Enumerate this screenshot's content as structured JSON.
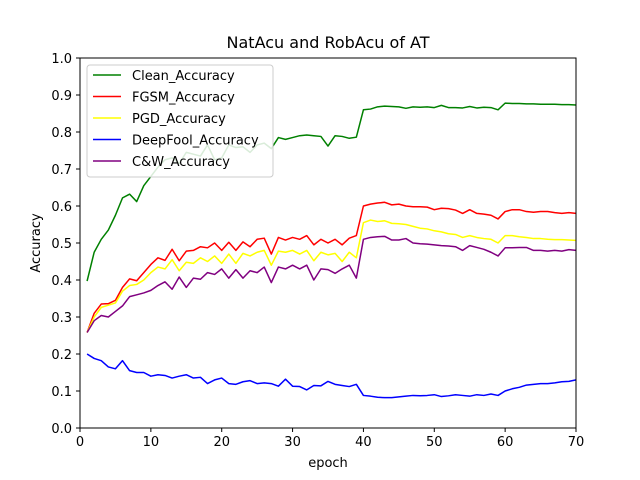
{
  "chart_data": {
    "type": "line",
    "title": "NatAcu and RobAcu of AT",
    "xlabel": "epoch",
    "ylabel": "Accuracy",
    "xlim": [
      0,
      70
    ],
    "ylim": [
      0.0,
      1.0
    ],
    "xticks": [
      "0",
      "10",
      "20",
      "30",
      "40",
      "50",
      "60",
      "70"
    ],
    "yticks": [
      "0.0",
      "0.1",
      "0.2",
      "0.3",
      "0.4",
      "0.5",
      "0.6",
      "0.7",
      "0.8",
      "0.9",
      "1.0"
    ],
    "grid": false,
    "legend_position": "upper-left",
    "x": [
      1,
      2,
      3,
      4,
      5,
      6,
      7,
      8,
      9,
      10,
      11,
      12,
      13,
      14,
      15,
      16,
      17,
      18,
      19,
      20,
      21,
      22,
      23,
      24,
      25,
      26,
      27,
      28,
      29,
      30,
      31,
      32,
      33,
      34,
      35,
      36,
      37,
      38,
      39,
      40,
      41,
      42,
      43,
      44,
      45,
      46,
      47,
      48,
      49,
      50,
      51,
      52,
      53,
      54,
      55,
      56,
      57,
      58,
      59,
      60,
      61,
      62,
      63,
      64,
      65,
      66,
      67,
      68,
      69,
      70
    ],
    "series": [
      {
        "name": "Clean_Accuracy",
        "color": "#008000",
        "values": [
          0.397,
          0.475,
          0.51,
          0.535,
          0.575,
          0.622,
          0.632,
          0.612,
          0.655,
          0.68,
          0.705,
          0.725,
          0.73,
          0.715,
          0.745,
          0.74,
          0.735,
          0.765,
          0.725,
          0.73,
          0.765,
          0.758,
          0.76,
          0.745,
          0.765,
          0.77,
          0.755,
          0.785,
          0.78,
          0.785,
          0.79,
          0.792,
          0.79,
          0.788,
          0.762,
          0.79,
          0.788,
          0.783,
          0.786,
          0.86,
          0.862,
          0.868,
          0.87,
          0.869,
          0.868,
          0.864,
          0.868,
          0.867,
          0.868,
          0.866,
          0.872,
          0.866,
          0.866,
          0.865,
          0.869,
          0.865,
          0.867,
          0.866,
          0.86,
          0.878,
          0.877,
          0.877,
          0.876,
          0.876,
          0.875,
          0.875,
          0.875,
          0.874,
          0.874,
          0.873
        ]
      },
      {
        "name": "FGSM_Accuracy",
        "color": "#ff0000",
        "values": [
          0.258,
          0.31,
          0.335,
          0.336,
          0.345,
          0.38,
          0.403,
          0.398,
          0.42,
          0.442,
          0.46,
          0.453,
          0.483,
          0.452,
          0.478,
          0.48,
          0.49,
          0.487,
          0.5,
          0.48,
          0.502,
          0.48,
          0.503,
          0.49,
          0.51,
          0.513,
          0.47,
          0.515,
          0.508,
          0.515,
          0.51,
          0.52,
          0.495,
          0.51,
          0.5,
          0.51,
          0.495,
          0.513,
          0.52,
          0.6,
          0.605,
          0.608,
          0.61,
          0.603,
          0.605,
          0.6,
          0.598,
          0.598,
          0.597,
          0.59,
          0.594,
          0.593,
          0.589,
          0.58,
          0.59,
          0.58,
          0.578,
          0.575,
          0.565,
          0.585,
          0.59,
          0.59,
          0.585,
          0.583,
          0.585,
          0.585,
          0.582,
          0.58,
          0.582,
          0.58
        ]
      },
      {
        "name": "PGD_Accuracy",
        "color": "#ffff00",
        "values": [
          0.258,
          0.3,
          0.326,
          0.332,
          0.338,
          0.37,
          0.385,
          0.388,
          0.4,
          0.42,
          0.435,
          0.43,
          0.455,
          0.425,
          0.448,
          0.445,
          0.46,
          0.45,
          0.465,
          0.445,
          0.47,
          0.445,
          0.472,
          0.465,
          0.475,
          0.48,
          0.44,
          0.478,
          0.475,
          0.48,
          0.47,
          0.48,
          0.452,
          0.475,
          0.468,
          0.472,
          0.45,
          0.475,
          0.46,
          0.555,
          0.562,
          0.558,
          0.56,
          0.553,
          0.552,
          0.55,
          0.545,
          0.54,
          0.538,
          0.533,
          0.53,
          0.525,
          0.523,
          0.515,
          0.52,
          0.515,
          0.512,
          0.51,
          0.5,
          0.52,
          0.52,
          0.517,
          0.515,
          0.512,
          0.512,
          0.51,
          0.509,
          0.509,
          0.508,
          0.507
        ]
      },
      {
        "name": "DeepFool_Accuracy",
        "color": "#0000ff",
        "values": [
          0.2,
          0.188,
          0.182,
          0.165,
          0.16,
          0.182,
          0.155,
          0.15,
          0.15,
          0.14,
          0.144,
          0.142,
          0.135,
          0.14,
          0.144,
          0.135,
          0.137,
          0.12,
          0.13,
          0.135,
          0.12,
          0.118,
          0.125,
          0.128,
          0.12,
          0.122,
          0.12,
          0.113,
          0.132,
          0.113,
          0.112,
          0.103,
          0.115,
          0.114,
          0.126,
          0.118,
          0.115,
          0.112,
          0.118,
          0.088,
          0.086,
          0.083,
          0.082,
          0.082,
          0.084,
          0.086,
          0.088,
          0.087,
          0.088,
          0.09,
          0.085,
          0.087,
          0.09,
          0.088,
          0.086,
          0.09,
          0.088,
          0.092,
          0.088,
          0.1,
          0.106,
          0.11,
          0.116,
          0.118,
          0.12,
          0.12,
          0.122,
          0.125,
          0.126,
          0.13
        ]
      },
      {
        "name": "C&W_Accuracy",
        "color": "#800080",
        "values": [
          0.258,
          0.29,
          0.304,
          0.3,
          0.315,
          0.33,
          0.355,
          0.36,
          0.365,
          0.372,
          0.385,
          0.395,
          0.375,
          0.408,
          0.38,
          0.405,
          0.402,
          0.42,
          0.415,
          0.43,
          0.405,
          0.428,
          0.405,
          0.425,
          0.42,
          0.435,
          0.393,
          0.435,
          0.43,
          0.44,
          0.43,
          0.44,
          0.4,
          0.43,
          0.428,
          0.418,
          0.43,
          0.44,
          0.405,
          0.51,
          0.515,
          0.517,
          0.518,
          0.508,
          0.508,
          0.512,
          0.5,
          0.498,
          0.497,
          0.495,
          0.493,
          0.492,
          0.49,
          0.48,
          0.493,
          0.488,
          0.483,
          0.475,
          0.465,
          0.487,
          0.487,
          0.488,
          0.488,
          0.48,
          0.48,
          0.478,
          0.48,
          0.478,
          0.482,
          0.48
        ]
      }
    ]
  }
}
